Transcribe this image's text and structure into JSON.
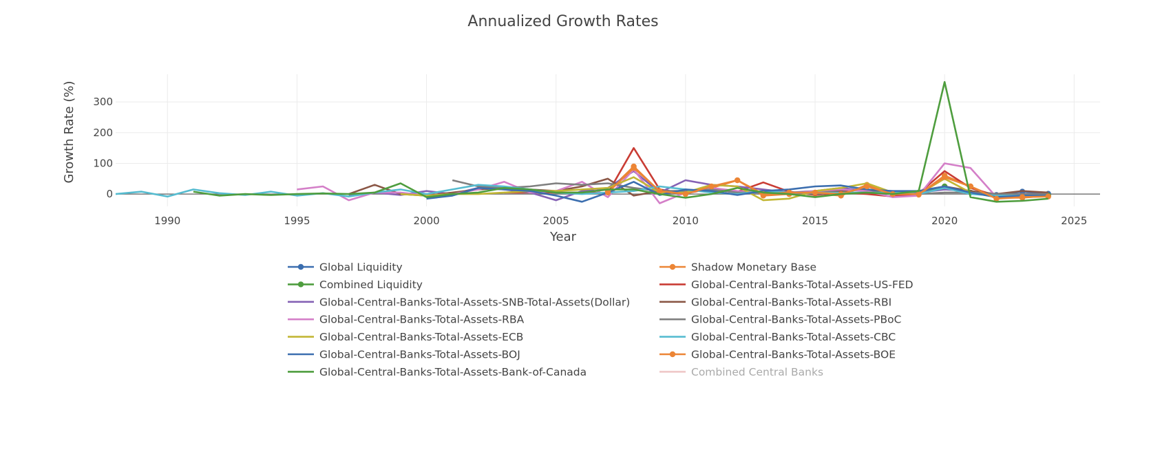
{
  "chart_data": {
    "type": "line",
    "title": "Annualized Growth Rates",
    "xlabel": "Year",
    "ylabel": "Growth Rate (%)",
    "xlim": [
      1988,
      2026
    ],
    "ylim": [
      -40,
      390
    ],
    "xticks": [
      1990,
      1995,
      2000,
      2005,
      2010,
      2015,
      2020,
      2025
    ],
    "yticks": [
      0,
      100,
      200,
      300
    ],
    "grid": true,
    "legend_position": "bottom",
    "zero_line": true,
    "series": [
      {
        "name": "Global Liquidity",
        "color": "#3b6eaf",
        "markers": true,
        "hidden": false,
        "x": [
          2022,
          2023,
          2024
        ],
        "y": [
          -3,
          8,
          1
        ]
      },
      {
        "name": "Shadow Monetary Base",
        "color": "#ec8535",
        "markers": true,
        "hidden": false,
        "x": [
          2007,
          2008,
          2009,
          2010,
          2011,
          2012,
          2013,
          2014,
          2015,
          2016,
          2017,
          2018,
          2019,
          2020,
          2021,
          2022,
          2023,
          2024
        ],
        "y": [
          8,
          90,
          8,
          2,
          20,
          45,
          -5,
          0,
          2,
          -5,
          30,
          -2,
          -2,
          60,
          25,
          -12,
          -12,
          -5
        ]
      },
      {
        "name": "Combined Liquidity",
        "color": "#4e9d3e",
        "markers": true,
        "hidden": false,
        "x": [
          2019,
          2020,
          2021,
          2022,
          2023,
          2024
        ],
        "y": [
          5,
          25,
          5,
          -10,
          -10,
          -5
        ]
      },
      {
        "name": "Global-Central-Banks-Total-Assets-US-FED",
        "color": "#c93c34",
        "markers": false,
        "hidden": false,
        "x": [
          2003,
          2004,
          2005,
          2006,
          2007,
          2008,
          2009,
          2010,
          2011,
          2012,
          2013,
          2014,
          2015,
          2016,
          2017,
          2018,
          2019,
          2020,
          2021,
          2022,
          2023,
          2024
        ],
        "y": [
          5,
          5,
          5,
          5,
          3,
          150,
          15,
          2,
          18,
          8,
          38,
          8,
          -3,
          5,
          0,
          -8,
          2,
          75,
          20,
          -5,
          -8,
          -5
        ]
      },
      {
        "name": "Global-Central-Banks-Total-Assets-SNB-Total-Assets(Dollar)",
        "color": "#8461b4",
        "markers": false,
        "hidden": false,
        "x": [
          1997,
          1998,
          1999,
          2000,
          2001,
          2002,
          2003,
          2004,
          2005,
          2006,
          2007,
          2008,
          2009,
          2010,
          2011,
          2012,
          2013,
          2014,
          2015,
          2016,
          2017,
          2018,
          2019,
          2020,
          2021,
          2022,
          2023,
          2024
        ],
        "y": [
          -5,
          5,
          -3,
          10,
          0,
          20,
          15,
          5,
          -20,
          10,
          20,
          75,
          5,
          45,
          30,
          25,
          15,
          5,
          10,
          20,
          10,
          0,
          5,
          15,
          10,
          -5,
          0,
          0
        ]
      },
      {
        "name": "Global-Central-Banks-Total-Assets-RBI",
        "color": "#8a5645",
        "markers": false,
        "hidden": false,
        "x": [
          1997,
          1998,
          1999,
          2000,
          2001,
          2002,
          2003,
          2004,
          2005,
          2006,
          2007,
          2008,
          2009,
          2010,
          2011,
          2012,
          2013,
          2014,
          2015,
          2016,
          2017,
          2018,
          2019,
          2020,
          2021,
          2022,
          2023,
          2024
        ],
        "y": [
          0,
          30,
          0,
          -5,
          5,
          15,
          20,
          15,
          10,
          25,
          50,
          -5,
          10,
          10,
          15,
          5,
          10,
          5,
          5,
          10,
          15,
          5,
          10,
          25,
          10,
          0,
          10,
          5
        ]
      },
      {
        "name": "Global-Central-Banks-Total-Assets-RBA",
        "color": "#d47fc8",
        "markers": false,
        "hidden": false,
        "x": [
          1995,
          1996,
          1997,
          1998,
          1999,
          2000,
          2001,
          2002,
          2003,
          2004,
          2005,
          2006,
          2007,
          2008,
          2009,
          2010,
          2011,
          2012,
          2013,
          2014,
          2015,
          2016,
          2017,
          2018,
          2019,
          2020,
          2021,
          2022,
          2023,
          2024
        ],
        "y": [
          15,
          25,
          -20,
          5,
          5,
          -5,
          0,
          15,
          40,
          5,
          10,
          40,
          -10,
          80,
          -30,
          5,
          20,
          10,
          5,
          0,
          10,
          15,
          10,
          -10,
          -5,
          100,
          85,
          -10,
          0,
          -5
        ]
      },
      {
        "name": "Global-Central-Banks-Total-Assets-PBoC",
        "color": "#7f7f7f",
        "markers": false,
        "hidden": false,
        "x": [
          2001,
          2002,
          2003,
          2004,
          2005,
          2006,
          2007,
          2008,
          2009,
          2010,
          2011,
          2012,
          2013,
          2014,
          2015,
          2016,
          2017,
          2018,
          2019,
          2020,
          2021,
          2022,
          2023,
          2024
        ],
        "y": [
          45,
          25,
          20,
          25,
          35,
          30,
          35,
          20,
          10,
          10,
          15,
          5,
          5,
          5,
          0,
          5,
          5,
          5,
          0,
          5,
          5,
          0,
          0,
          0
        ]
      },
      {
        "name": "Global-Central-Banks-Total-Assets-ECB",
        "color": "#c2b634",
        "markers": false,
        "hidden": false,
        "x": [
          1999,
          2000,
          2001,
          2002,
          2003,
          2004,
          2005,
          2006,
          2007,
          2008,
          2009,
          2010,
          2011,
          2012,
          2013,
          2014,
          2015,
          2016,
          2017,
          2018,
          2019,
          2020,
          2021,
          2022,
          2023,
          2024
        ],
        "y": [
          0,
          -5,
          0,
          0,
          5,
          10,
          10,
          15,
          20,
          55,
          5,
          5,
          30,
          25,
          -20,
          -15,
          10,
          20,
          35,
          5,
          0,
          50,
          5,
          -10,
          -10,
          -5
        ]
      },
      {
        "name": "Global-Central-Banks-Total-Assets-CBC",
        "color": "#56bcd0",
        "markers": false,
        "hidden": false,
        "x": [
          1988,
          1989,
          1990,
          1991,
          1992,
          1993,
          1994,
          1995,
          1996,
          1997,
          1998,
          1999,
          2000,
          2001,
          2002,
          2003,
          2004,
          2005,
          2006,
          2007,
          2008,
          2009,
          2010,
          2011,
          2012,
          2013,
          2014,
          2015,
          2016,
          2017,
          2018,
          2019,
          2020,
          2021,
          2022,
          2023,
          2024
        ],
        "y": [
          0,
          8,
          -8,
          15,
          3,
          -3,
          8,
          -5,
          3,
          -8,
          5,
          15,
          0,
          15,
          30,
          25,
          15,
          5,
          0,
          5,
          10,
          25,
          15,
          5,
          0,
          10,
          5,
          5,
          5,
          5,
          5,
          0,
          20,
          0,
          -5,
          -5,
          -5
        ]
      },
      {
        "name": "Global-Central-Banks-Total-Assets-BOJ",
        "color": "#3b6eaf",
        "markers": false,
        "hidden": false,
        "x": [
          2000,
          2001,
          2002,
          2003,
          2004,
          2005,
          2006,
          2007,
          2008,
          2009,
          2010,
          2011,
          2012,
          2013,
          2014,
          2015,
          2016,
          2017,
          2018,
          2019,
          2020,
          2021,
          2022,
          2023,
          2024
        ],
        "y": [
          -15,
          -5,
          20,
          15,
          10,
          -5,
          -25,
          5,
          40,
          -3,
          15,
          10,
          -3,
          10,
          15,
          25,
          28,
          15,
          10,
          10,
          25,
          5,
          -10,
          -5,
          -5
        ]
      },
      {
        "name": "Global-Central-Banks-Total-Assets-BOE",
        "color": "#ec8535",
        "markers": true,
        "hidden": false,
        "x": [
          2007,
          2008,
          2009,
          2010,
          2011,
          2012,
          2013,
          2014,
          2015,
          2016,
          2017,
          2018,
          2019,
          2020,
          2021,
          2022,
          2023,
          2024
        ],
        "y": [
          5,
          85,
          10,
          0,
          25,
          45,
          0,
          5,
          5,
          0,
          25,
          0,
          0,
          55,
          25,
          -15,
          -10,
          -8
        ]
      },
      {
        "name": "Global-Central-Banks-Total-Assets-Bank-of-Canada",
        "color": "#4e9d3e",
        "markers": false,
        "hidden": false,
        "x": [
          1991,
          1992,
          1993,
          1994,
          1995,
          1996,
          1997,
          1998,
          1999,
          2000,
          2001,
          2002,
          2003,
          2004,
          2005,
          2006,
          2007,
          2008,
          2009,
          2010,
          2011,
          2012,
          2013,
          2014,
          2015,
          2016,
          2017,
          2018,
          2019,
          2020,
          2021,
          2022,
          2023,
          2024
        ],
        "y": [
          8,
          -5,
          0,
          -3,
          0,
          2,
          0,
          5,
          35,
          -10,
          0,
          5,
          20,
          15,
          5,
          5,
          15,
          15,
          0,
          -12,
          0,
          20,
          5,
          0,
          -10,
          0,
          5,
          0,
          10,
          365,
          -10,
          -25,
          -22,
          -15
        ]
      },
      {
        "name": "Combined Central Banks",
        "color": "#e6a3a3",
        "markers": false,
        "hidden": true,
        "x": [],
        "y": []
      }
    ]
  }
}
